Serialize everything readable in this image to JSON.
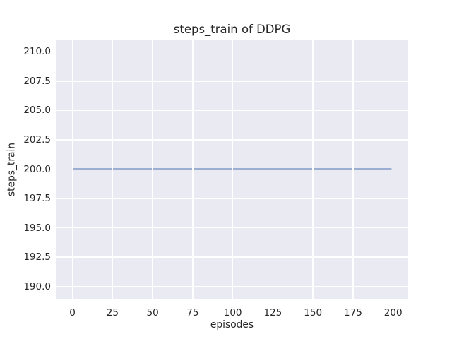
{
  "chart_data": {
    "type": "line",
    "title": "steps_train of DDPG",
    "xlabel": "episodes",
    "ylabel": "steps_train",
    "x_ticks": [
      0,
      25,
      50,
      75,
      100,
      125,
      150,
      175,
      200
    ],
    "x_tick_labels": [
      "0",
      "25",
      "50",
      "75",
      "100",
      "125",
      "150",
      "175",
      "200"
    ],
    "y_ticks": [
      190.0,
      192.5,
      195.0,
      197.5,
      200.0,
      202.5,
      205.0,
      207.5,
      210.0
    ],
    "y_tick_labels": [
      "190.0",
      "192.5",
      "195.0",
      "197.5",
      "200.0",
      "202.5",
      "205.0",
      "207.5",
      "210.0"
    ],
    "xlim": [
      -9.95,
      208.95
    ],
    "ylim": [
      188.96,
      211.04
    ],
    "grid": true,
    "legend": null,
    "plot_background_color": "#eaeaf2",
    "grid_color": "#ffffff",
    "text_color": "#262626",
    "series": [
      {
        "name": "steps_train",
        "color": "#4c72b0",
        "x": [
          0,
          199
        ],
        "y": [
          200,
          200
        ]
      }
    ]
  }
}
